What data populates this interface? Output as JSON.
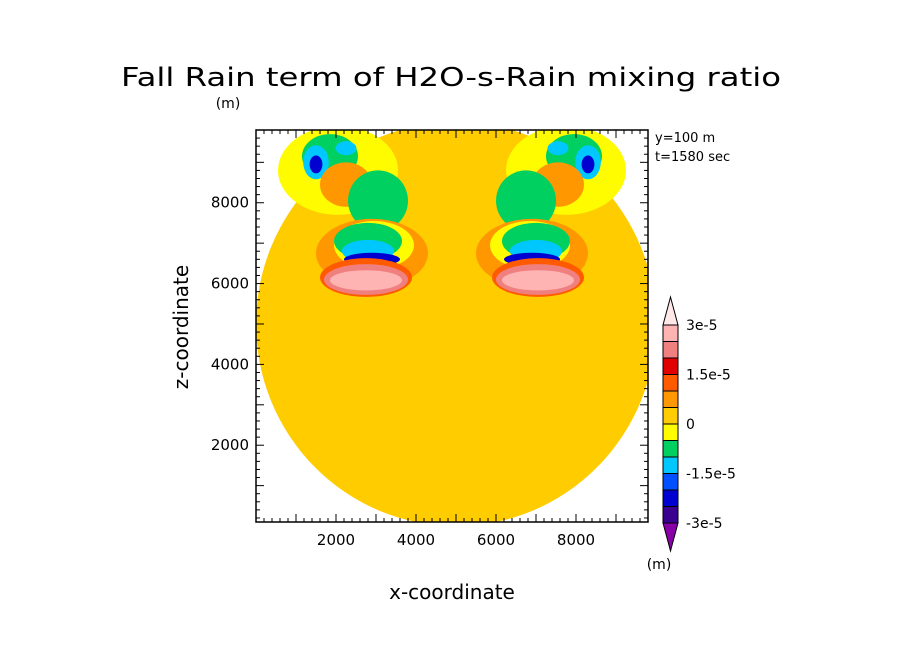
{
  "chart_data": {
    "type": "heatmap",
    "title": "Fall Rain term of H2O-s-Rain mixing ratio",
    "units": "(m)",
    "xlabel": "x-coordinate",
    "ylabel": "z-coordinate",
    "xlim": [
      0,
      9800
    ],
    "ylim": [
      100,
      9800
    ],
    "x_ticks": [
      2000,
      4000,
      6000,
      8000
    ],
    "x_tick_labels": [
      "2000",
      "4000",
      "6000",
      "8000"
    ],
    "y_ticks": [
      2000,
      4000,
      6000,
      8000
    ],
    "y_tick_labels": [
      "2000",
      "4000",
      "6000",
      "8000"
    ],
    "annotations": [
      "y=100 m",
      "t=1580 sec"
    ],
    "colorbar": {
      "units": "(m)",
      "levels": [
        -3e-05,
        -2.5e-05,
        -2e-05,
        -1.5e-05,
        -1e-05,
        -5e-06,
        0,
        5e-06,
        1e-05,
        1.5e-05,
        2e-05,
        2.5e-05,
        3e-05
      ],
      "colors": [
        "#8800a8",
        "#3a0090",
        "#0000d0",
        "#0050ff",
        "#00c8ff",
        "#00d060",
        "#fffc00",
        "#ffcc00",
        "#ff9800",
        "#ff5a00",
        "#e00000",
        "#f08080",
        "#ffb4b4",
        "#ffe8e8"
      ],
      "labels": [
        {
          "value": 3e-05,
          "text": "3e-5"
        },
        {
          "value": 1.5e-05,
          "text": "1.5e-5"
        },
        {
          "value": 0,
          "text": "0"
        },
        {
          "value": -1.5e-05,
          "text": "-1.5e-5"
        },
        {
          "value": -3e-05,
          "text": "-3e-5"
        }
      ]
    },
    "background_value": 2.5e-06,
    "features": [
      {
        "x": 5000,
        "z": 5000,
        "rx": 5000,
        "rz": 5000,
        "value": 2.5e-06,
        "mirror": false
      },
      {
        "x": 2050,
        "z": 8800,
        "rx": 1500,
        "rz": 1100,
        "value": -2e-06,
        "mirror": true
      },
      {
        "x": 1850,
        "z": 9150,
        "rx": 700,
        "rz": 550,
        "value": -7e-06,
        "mirror": true
      },
      {
        "x": 1500,
        "z": 9000,
        "rx": 320,
        "rz": 420,
        "value": -1.2e-05,
        "mirror": true
      },
      {
        "x": 1500,
        "z": 8950,
        "rx": 160,
        "rz": 220,
        "value": -2.2e-05,
        "mirror": true
      },
      {
        "x": 2250,
        "z": 9350,
        "rx": 260,
        "rz": 170,
        "value": -1.2e-05,
        "mirror": true
      },
      {
        "x": 2250,
        "z": 8450,
        "rx": 650,
        "rz": 550,
        "value": 7e-06,
        "mirror": true
      },
      {
        "x": 3050,
        "z": 8050,
        "rx": 750,
        "rz": 750,
        "value": -7e-06,
        "mirror": true
      },
      {
        "x": 2900,
        "z": 6750,
        "rx": 1400,
        "rz": 850,
        "value": 7e-06,
        "mirror": true
      },
      {
        "x": 2950,
        "z": 6950,
        "rx": 1000,
        "rz": 600,
        "value": -3e-06,
        "mirror": true
      },
      {
        "x": 2800,
        "z": 7050,
        "rx": 850,
        "rz": 450,
        "value": -7e-06,
        "mirror": true
      },
      {
        "x": 2800,
        "z": 6800,
        "rx": 650,
        "rz": 280,
        "value": -1.2e-05,
        "mirror": true
      },
      {
        "x": 2900,
        "z": 6600,
        "rx": 700,
        "rz": 160,
        "value": -2.2e-05,
        "mirror": true
      },
      {
        "x": 2750,
        "z": 6150,
        "rx": 1150,
        "rz": 480,
        "value": 1.2e-05,
        "mirror": true
      },
      {
        "x": 2750,
        "z": 6100,
        "rx": 1050,
        "rz": 380,
        "value": 2.2e-05,
        "mirror": true
      },
      {
        "x": 2750,
        "z": 6080,
        "rx": 900,
        "rz": 250,
        "value": 2.7e-05,
        "mirror": true
      },
      {
        "x": 2750,
        "z": 6050,
        "rx": 750,
        "rz": 140,
        "value": 2.95e-05,
        "mirror": true
      }
    ]
  }
}
